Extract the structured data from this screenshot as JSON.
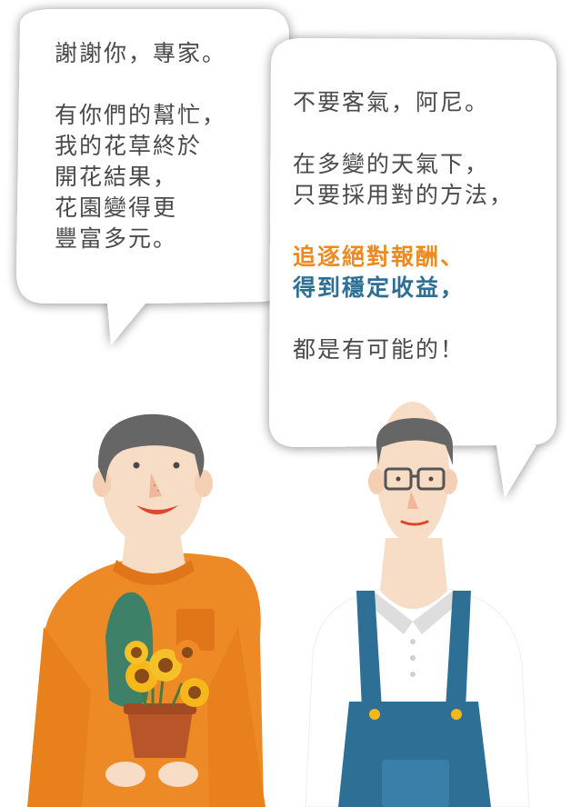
{
  "left_bubble": {
    "line1": "謝謝你，專家。",
    "line2": "有你們的幫忙，",
    "line3": "我的花草終於",
    "line4": "開花結果，",
    "line5": "花園變得更",
    "line6": "豐富多元。"
  },
  "right_bubble": {
    "line1": "不要客氣，阿尼。",
    "line2": "在多變的天氣下，",
    "line3": "只要採用對的方法，",
    "highlight_orange": "追逐絕對報酬、",
    "highlight_blue": "得到穩定收益，",
    "line6": "都是有可能的！"
  },
  "colors": {
    "text": "#4a4a4a",
    "orange_highlight": "#ef8a1f",
    "blue_highlight": "#2e6f96",
    "sweater": "#ee8a25",
    "overalls": "#2e6f96",
    "skin": "#f7dcc6",
    "hair": "#666666",
    "bubble": "#ffffff",
    "bubble_shadow": "#d9d9d9"
  },
  "characters": {
    "left": "gardener-holding-sunflowers",
    "right": "expert-with-glasses-in-overalls"
  }
}
